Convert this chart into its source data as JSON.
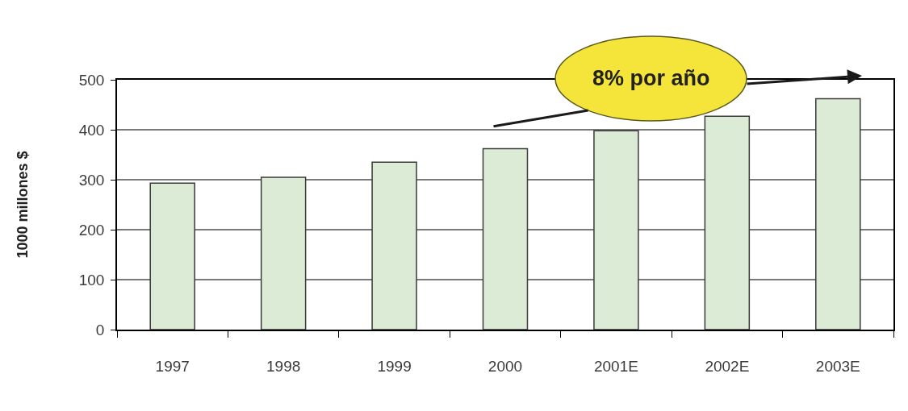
{
  "chart_data": {
    "type": "bar",
    "categories": [
      "1997",
      "1998",
      "1999",
      "2000",
      "2001E",
      "2002E",
      "2003E"
    ],
    "values": [
      293,
      305,
      335,
      362,
      398,
      427,
      462
    ],
    "color": "#dcebd6",
    "ylabel": "1000 millones $",
    "ylim": [
      0,
      500
    ],
    "yticks": [
      0,
      100,
      200,
      300,
      400,
      500
    ],
    "grid": "y",
    "annotations": [
      "8% por año"
    ]
  }
}
